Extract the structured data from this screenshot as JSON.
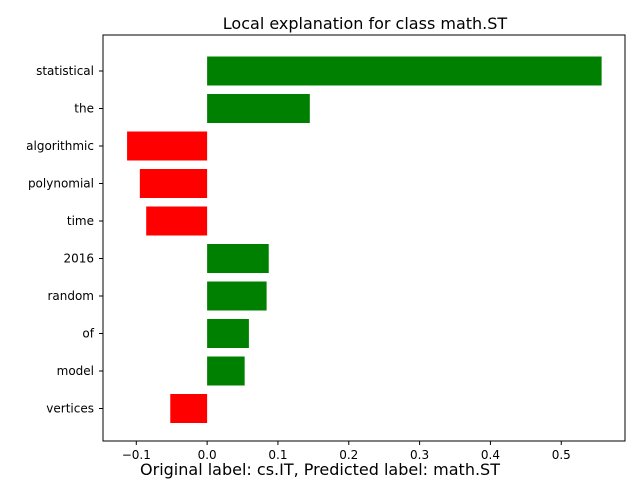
{
  "chart_data": {
    "type": "bar",
    "orientation": "horizontal",
    "title": "Local explanation for class math.ST",
    "caption": "Original label: cs.IT, Predicted label: math.ST",
    "xlabel": "",
    "ylabel": "",
    "categories": [
      "statistical",
      "the",
      "algorithmic",
      "polynomial",
      "time",
      "2016",
      "random",
      "of",
      "model",
      "vertices"
    ],
    "values": [
      0.557,
      0.145,
      -0.113,
      -0.095,
      -0.086,
      0.087,
      0.084,
      0.059,
      0.053,
      -0.052
    ],
    "xlim": [
      -0.147,
      0.59
    ],
    "xticks": [
      -0.1,
      0.0,
      0.1,
      0.2,
      0.3,
      0.4,
      0.5
    ],
    "xtick_labels": [
      "−0.1",
      "0.0",
      "0.1",
      "0.2",
      "0.3",
      "0.4",
      "0.5"
    ],
    "positive_color": "#008000",
    "negative_color": "#ff0000",
    "grid": false,
    "legend": "none"
  }
}
